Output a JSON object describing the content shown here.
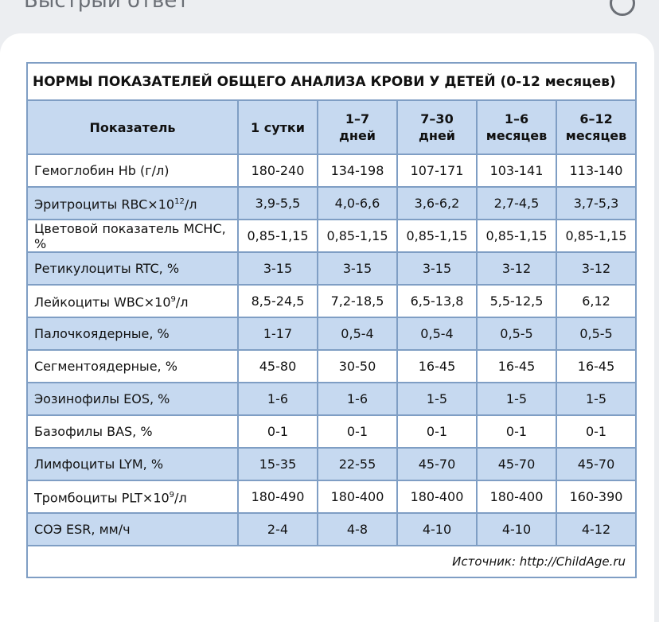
{
  "header": {
    "title": "Быстрый ответ"
  },
  "table": {
    "title": "НОРМЫ ПОКАЗАТЕЛЕЙ ОБЩЕГО АНАЛИЗА КРОВИ У ДЕТЕЙ  (0-12 месяцев)",
    "columns": [
      [
        "Показатель"
      ],
      [
        "1 сутки"
      ],
      [
        "1–7",
        "дней"
      ],
      [
        "7–30",
        "дней"
      ],
      [
        "1–6",
        "месяцев"
      ],
      [
        "6–12",
        "месяцев"
      ]
    ],
    "rows": [
      {
        "label": [
          "Гемоглобин Hb (г/л)"
        ],
        "values": [
          "180-240",
          "134-198",
          "107-171",
          "103-141",
          "113-140"
        ]
      },
      {
        "label": [
          "Эритроциты RBC×10",
          "12",
          "/л"
        ],
        "values": [
          "3,9-5,5",
          "4,0-6,6",
          "3,6-6,2",
          "2,7-4,5",
          "3,7-5,3"
        ]
      },
      {
        "label": [
          "Цветовой показатель MCHC, %"
        ],
        "values": [
          "0,85-1,15",
          "0,85-1,15",
          "0,85-1,15",
          "0,85-1,15",
          "0,85-1,15"
        ]
      },
      {
        "label": [
          "Ретикулоциты RTC, %"
        ],
        "values": [
          "3-15",
          "3-15",
          "3-15",
          "3-12",
          "3-12"
        ]
      },
      {
        "label": [
          "Лейкоциты WBC×10",
          "9",
          "/л"
        ],
        "values": [
          "8,5-24,5",
          "7,2-18,5",
          "6,5-13,8",
          "5,5-12,5",
          "6,12"
        ]
      },
      {
        "label": [
          "Палочкоядерные, %"
        ],
        "values": [
          "1-17",
          "0,5-4",
          "0,5-4",
          "0,5-5",
          "0,5-5"
        ]
      },
      {
        "label": [
          "Сегментоядерные, %"
        ],
        "values": [
          "45-80",
          "30-50",
          "16-45",
          "16-45",
          "16-45"
        ]
      },
      {
        "label": [
          "Эозинофилы EOS, %"
        ],
        "values": [
          "1-6",
          "1-6",
          "1-5",
          "1-5",
          "1-5"
        ]
      },
      {
        "label": [
          "Базофилы BAS, %"
        ],
        "values": [
          "0-1",
          "0-1",
          "0-1",
          "0-1",
          "0-1"
        ]
      },
      {
        "label": [
          "Лимфоциты LYM, %"
        ],
        "values": [
          "15-35",
          "22-55",
          "45-70",
          "45-70",
          "45-70"
        ]
      },
      {
        "label": [
          "Тромбоциты PLT×10",
          "9",
          "/л"
        ],
        "values": [
          "180-490",
          "180-400",
          "180-400",
          "180-400",
          "160-390"
        ]
      },
      {
        "label": [
          "СОЭ ESR, мм/ч"
        ],
        "values": [
          "2-4",
          "4-8",
          "4-10",
          "4-10",
          "4-12"
        ]
      }
    ],
    "source": "Источник: http://ChildAge.ru"
  }
}
